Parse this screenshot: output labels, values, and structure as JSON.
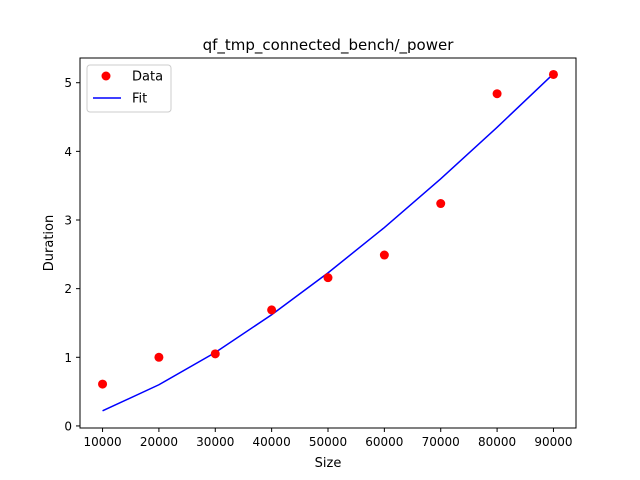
{
  "chart_data": {
    "type": "scatter",
    "title": "qf_tmp_connected_bench/_power",
    "xlabel": "Size",
    "ylabel": "Duration",
    "xlim": [
      6000,
      94000
    ],
    "ylim": [
      -0.03,
      5.36
    ],
    "x_ticks": [
      10000,
      20000,
      30000,
      40000,
      50000,
      60000,
      70000,
      80000,
      90000
    ],
    "x_tick_labels": [
      "10000",
      "20000",
      "30000",
      "40000",
      "50000",
      "60000",
      "70000",
      "80000",
      "90000"
    ],
    "y_ticks": [
      0,
      1,
      2,
      3,
      4,
      5
    ],
    "y_tick_labels": [
      "0",
      "1",
      "2",
      "3",
      "4",
      "5"
    ],
    "grid": false,
    "legend_position": "top-left",
    "series": [
      {
        "name": "Data",
        "kind": "scatter",
        "color": "#ff0000",
        "x": [
          10000,
          20000,
          30000,
          40000,
          50000,
          60000,
          70000,
          80000,
          90000
        ],
        "y": [
          0.61,
          1.0,
          1.05,
          1.69,
          2.16,
          2.49,
          3.24,
          4.84,
          5.12
        ]
      },
      {
        "name": "Fit",
        "kind": "line",
        "color": "#0000ff",
        "x": [
          10000,
          20000,
          30000,
          40000,
          50000,
          60000,
          70000,
          80000,
          90000
        ],
        "y": [
          0.22,
          0.6,
          1.07,
          1.62,
          2.23,
          2.89,
          3.6,
          4.35,
          5.13
        ]
      }
    ]
  }
}
